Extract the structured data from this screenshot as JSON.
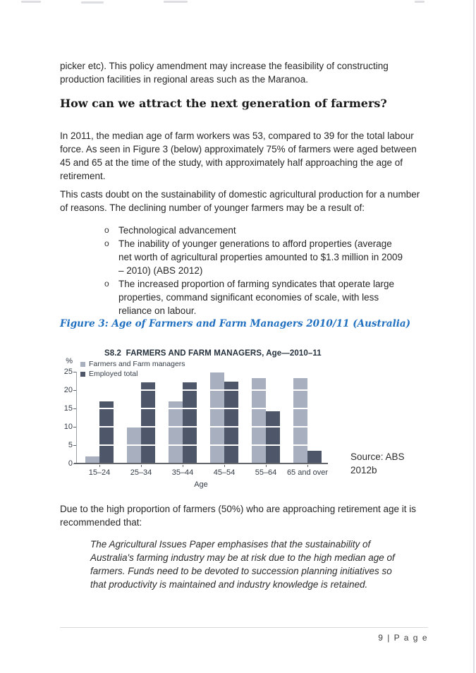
{
  "document": {
    "para_intro": "picker etc). This policy amendment may increase the feasibility of constructing production facilities in regional areas such as the Maranoa.",
    "heading": "How can we attract the next generation of farmers?",
    "para_median_age": "In 2011, the median age of farm workers was 53, compared to 39 for the total labour force. As seen in Figure 3 (below) approximately 75% of farmers were aged between 45 and 65 at the time of the study, with approximately half approaching the age of retirement.",
    "para_doubt": "This casts doubt on the sustainability of domestic agricultural production for a number of reasons. The declining number of younger farmers may be a result of:",
    "bullets": [
      "Technological advancement",
      "The inability of younger generations to afford properties (average net worth of agricultural properties amounted to $1.3 million in 2009 – 2010) (ABS 2012)",
      "The increased proportion of farming syndicates that operate large properties, command significant economies of scale, with less reliance on labour."
    ],
    "figure_caption": "Figure 3: Age of Farmers and Farm Managers 2010/11 (Australia)",
    "para_recommend": "Due to the high proportion of farmers (50%) who are approaching retirement age it is recommended that:",
    "quote": "The Agricultural Issues Paper emphasises that the sustainability of Australia's farming industry may be at risk due to the high median age of farmers. Funds need to be devoted to succession planning initiatives so that productivity is maintained and industry knowledge is retained.",
    "footer_label": "9 | P a g e"
  },
  "chart_data": {
    "type": "bar",
    "title": "S8.2  FARMERS AND FARM MANAGERS, Age—2010–11",
    "categories": [
      "15–24",
      "25–34",
      "35–44",
      "45–54",
      "55–64",
      "65 and over"
    ],
    "series": [
      {
        "name": "Farmers and Farm managers",
        "color": "#A8AFBE",
        "values": [
          2,
          10,
          17,
          25,
          23.2,
          23.3
        ]
      },
      {
        "name": "Employed total",
        "color": "#4D5769",
        "values": [
          17,
          22.1,
          22.2,
          22.3,
          14.3,
          3.4
        ]
      }
    ],
    "ylabel": "%",
    "xlabel": "Age",
    "ylim": [
      0,
      25
    ],
    "yticks": [
      0,
      5,
      10,
      15,
      20,
      25
    ],
    "legend_position": "top-left",
    "grid": "white-overlay-on-bars",
    "axis_color": "#9aa0a8",
    "baseline_color": "#63666b",
    "source": [
      "Source: ABS",
      "2012b"
    ]
  }
}
